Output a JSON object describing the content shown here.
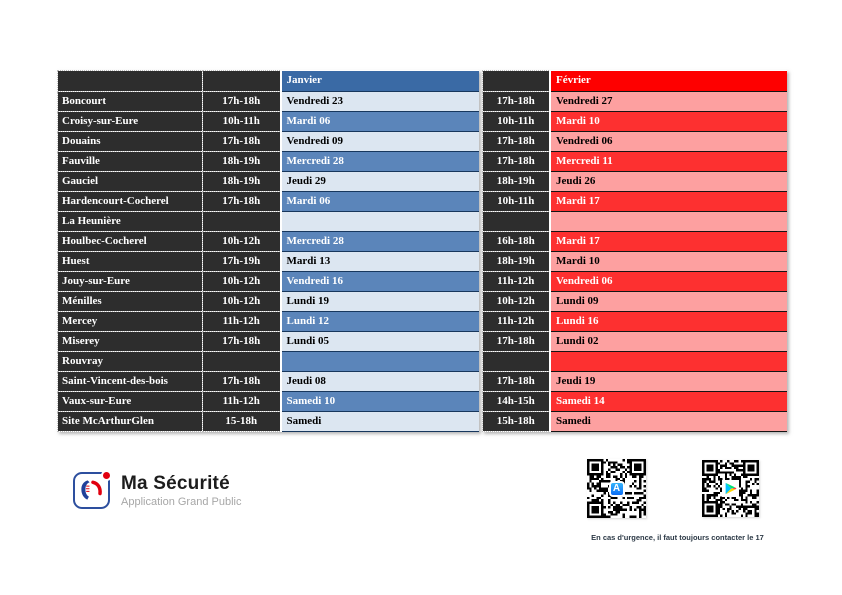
{
  "months": {
    "january": "Janvier",
    "february": "Février"
  },
  "rows": [
    {
      "name": "Boncourt",
      "jan_time": "17h-18h",
      "jan_date": "Vendredi 23",
      "feb_time": "17h-18h",
      "feb_date": "Vendredi 27"
    },
    {
      "name": "Croisy-sur-Eure",
      "jan_time": "10h-11h",
      "jan_date": "Mardi 06",
      "feb_time": "10h-11h",
      "feb_date": "Mardi 10"
    },
    {
      "name": "Douains",
      "jan_time": "17h-18h",
      "jan_date": "Vendredi 09",
      "feb_time": "17h-18h",
      "feb_date": "Vendredi 06"
    },
    {
      "name": "Fauville",
      "jan_time": "18h-19h",
      "jan_date": "Mercredi 28",
      "feb_time": "17h-18h",
      "feb_date": "Mercredi 11"
    },
    {
      "name": "Gauciel",
      "jan_time": "18h-19h",
      "jan_date": "Jeudi 29",
      "feb_time": "18h-19h",
      "feb_date": "Jeudi 26"
    },
    {
      "name": "Hardencourt-Cocherel",
      "jan_time": "17h-18h",
      "jan_date": "Mardi 06",
      "feb_time": "10h-11h",
      "feb_date": "Mardi 17"
    },
    {
      "name": "La Heunière",
      "jan_time": "",
      "jan_date": "",
      "feb_time": "",
      "feb_date": ""
    },
    {
      "name": "Houlbec-Cocherel",
      "jan_time": "10h-12h",
      "jan_date": "Mercredi 28",
      "feb_time": "16h-18h",
      "feb_date": "Mardi 17"
    },
    {
      "name": "Huest",
      "jan_time": "17h-19h",
      "jan_date": "Mardi 13",
      "feb_time": "18h-19h",
      "feb_date": "Mardi 10"
    },
    {
      "name": "Jouy-sur-Eure",
      "jan_time": "10h-12h",
      "jan_date": "Vendredi 16",
      "feb_time": "11h-12h",
      "feb_date": "Vendredi 06"
    },
    {
      "name": "Ménilles",
      "jan_time": "10h-12h",
      "jan_date": "Lundi 19",
      "feb_time": "10h-12h",
      "feb_date": "Lundi 09"
    },
    {
      "name": "Mercey",
      "jan_time": "11h-12h",
      "jan_date": "Lundi 12",
      "feb_time": "11h-12h",
      "feb_date": "Lundi 16"
    },
    {
      "name": "Miserey",
      "jan_time": "17h-18h",
      "jan_date": "Lundi 05",
      "feb_time": "17h-18h",
      "feb_date": "Lundi 02"
    },
    {
      "name": "Rouvray",
      "jan_time": "",
      "jan_date": "",
      "feb_time": "",
      "feb_date": ""
    },
    {
      "name": "Saint-Vincent-des-bois",
      "jan_time": "17h-18h",
      "jan_date": "Jeudi 08",
      "feb_time": "17h-18h",
      "feb_date": "Jeudi 19"
    },
    {
      "name": "Vaux-sur-Eure",
      "jan_time": "11h-12h",
      "jan_date": "Samedi 10",
      "feb_time": "14h-15h",
      "feb_date": "Samedi 14"
    },
    {
      "name": "Site McArthurGlen",
      "jan_time": "15-18h",
      "jan_date": "Samedi",
      "feb_time": "15h-18h",
      "feb_date": "Samedi"
    }
  ],
  "footer": {
    "logo_title": "Ma Sécurité",
    "logo_subtitle": "Application Grand Public",
    "emergency_note": "En cas d'urgence, il faut toujours contacter le 17",
    "app_store_glyph": "A"
  },
  "icons": {
    "left_qr": "app-store-icon",
    "right_qr": "google-play-icon",
    "logo": "marianne-phone-icon"
  },
  "colors": {
    "dark_cell": "#2d2d2d",
    "jan_header": "#3a6aa5",
    "jan_dark": "#5b85ba",
    "jan_light": "#dce6f1",
    "jan_border": "#17375d",
    "feb_header": "#fe0000",
    "feb_dark": "#fd3030",
    "feb_light": "#fda0a0",
    "brand_blue": "#2d4f9e",
    "brand_red": "#e1000f"
  }
}
